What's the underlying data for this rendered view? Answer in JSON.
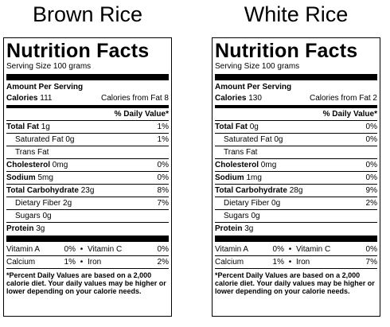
{
  "titles": {
    "left": "Brown Rice",
    "right": "White Rice"
  },
  "common": {
    "heading": "Nutrition Facts",
    "serving": "Serving Size  100 grams",
    "amount_per_serving": "Amount Per Serving",
    "calories_label": "Calories",
    "dv_header": "% Daily Value*",
    "total_fat": "Total Fat",
    "saturated_fat": "Saturated Fat",
    "trans_fat": "Trans Fat",
    "cholesterol": "Cholesterol",
    "sodium": "Sodium",
    "total_carbohydrate": "Total Carbohydrate",
    "dietary_fiber": "Dietary Fiber",
    "sugars": "Sugars",
    "protein": "Protein",
    "vitamin_a": "Vitamin A",
    "vitamin_c": "Vitamin C",
    "calcium": "Calcium",
    "iron": "Iron",
    "bullet": "•",
    "footnote": "*Percent Daily Values are based on a 2,000 calorie diet. Your daily values may be higher or lower depending on your calorie needs."
  },
  "brown": {
    "calories": "111",
    "calories_from_fat": "Calories from Fat 8",
    "total_fat": "1g",
    "total_fat_dv": "1%",
    "saturated_fat": "0g",
    "saturated_fat_dv": "1%",
    "cholesterol": "0mg",
    "cholesterol_dv": "0%",
    "sodium": "5mg",
    "sodium_dv": "0%",
    "carb": "23g",
    "carb_dv": "8%",
    "fiber": "2g",
    "fiber_dv": "7%",
    "sugars": "0g",
    "protein": "3g",
    "vitamin_a_dv": "0%",
    "vitamin_c_dv": "0%",
    "calcium_dv": "1%",
    "iron_dv": "2%"
  },
  "white": {
    "calories": "130",
    "calories_from_fat": "Calories from Fat 2",
    "total_fat": "0g",
    "total_fat_dv": "0%",
    "saturated_fat": "0g",
    "saturated_fat_dv": "0%",
    "cholesterol": "0mg",
    "cholesterol_dv": "0%",
    "sodium": "1mg",
    "sodium_dv": "0%",
    "carb": "28g",
    "carb_dv": "9%",
    "fiber": "0g",
    "fiber_dv": "2%",
    "sugars": "0g",
    "protein": "3g",
    "vitamin_a_dv": "0%",
    "vitamin_c_dv": "0%",
    "calcium_dv": "1%",
    "iron_dv": "7%"
  }
}
